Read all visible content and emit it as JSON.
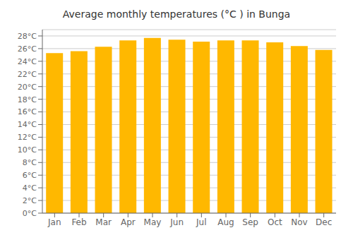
{
  "chart_data": {
    "type": "bar",
    "title": "Average monthly temperatures (°C ) in Bunga",
    "categories": [
      "Jan",
      "Feb",
      "Mar",
      "Apr",
      "May",
      "Jun",
      "Jul",
      "Aug",
      "Sep",
      "Oct",
      "Nov",
      "Dec"
    ],
    "values": [
      25.3,
      25.6,
      26.3,
      27.3,
      27.7,
      27.4,
      27.1,
      27.3,
      27.3,
      27.0,
      26.4,
      25.8
    ],
    "color": "#FFB800",
    "ylim": [
      0,
      29
    ],
    "yticks": [
      {
        "value": 0,
        "label": "0°C"
      },
      {
        "value": 2,
        "label": "2°C"
      },
      {
        "value": 4,
        "label": "4°C"
      },
      {
        "value": 6,
        "label": "6°C"
      },
      {
        "value": 8,
        "label": "8°C"
      },
      {
        "value": 10,
        "label": "10°C"
      },
      {
        "value": 12,
        "label": "12°C"
      },
      {
        "value": 14,
        "label": "14°C"
      },
      {
        "value": 16,
        "label": "16°C"
      },
      {
        "value": 18,
        "label": "18°C"
      },
      {
        "value": 20,
        "label": "20°C"
      },
      {
        "value": 22,
        "label": "22°C"
      },
      {
        "value": 24,
        "label": "24°C"
      },
      {
        "value": 26,
        "label": "26°C"
      },
      {
        "value": 28,
        "label": "28°C"
      }
    ],
    "grid": true
  }
}
